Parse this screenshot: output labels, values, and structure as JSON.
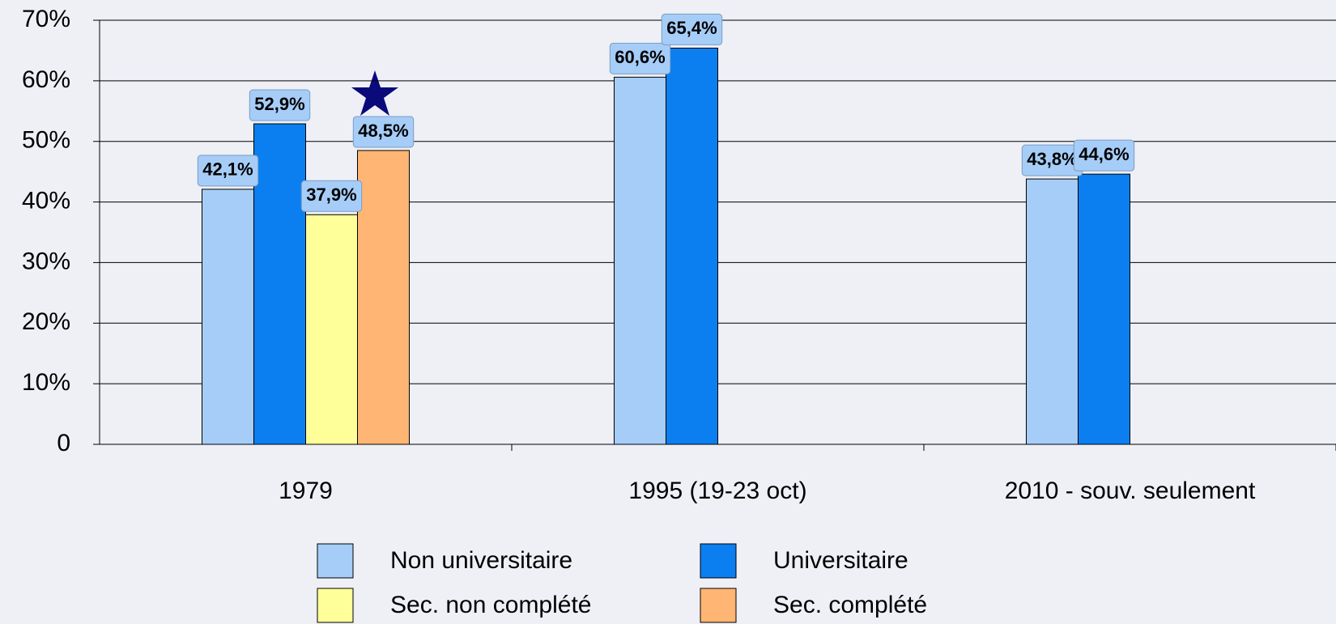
{
  "chart_data": {
    "type": "bar",
    "categories": [
      "1979",
      "1995 (19-23 oct)",
      "2010 - souv. seulement"
    ],
    "series": [
      {
        "name": "Non universitaire",
        "color": "#a6cdf7",
        "values": [
          42.1,
          60.6,
          43.8
        ],
        "value_labels": [
          "42,1%",
          "60,6%",
          "43,8%"
        ]
      },
      {
        "name": "Universitaire",
        "color": "#0b7ff0",
        "values": [
          52.9,
          65.4,
          44.6
        ],
        "value_labels": [
          "52,9%",
          "65,4%",
          "44,6%"
        ]
      },
      {
        "name": "Sec. non complété",
        "color": "#ffff99",
        "values": [
          37.9,
          null,
          null
        ],
        "value_labels": [
          "37,9%",
          null,
          null
        ]
      },
      {
        "name": "Sec. complété",
        "color": "#ffb573",
        "values": [
          48.5,
          null,
          null
        ],
        "value_labels": [
          "48,5%",
          null,
          null
        ]
      }
    ],
    "ylim": [
      0,
      70
    ],
    "yticks": [
      0,
      {
        "value": 10,
        "label": "10%"
      },
      {
        "value": 20,
        "label": "20%"
      },
      {
        "value": 30,
        "label": "30%"
      },
      {
        "value": 40,
        "label": "40%"
      },
      {
        "value": 50,
        "label": "50%"
      },
      {
        "value": 60,
        "label": "60%"
      },
      {
        "value": 70,
        "label": "70%"
      }
    ],
    "grid": true
  }
}
